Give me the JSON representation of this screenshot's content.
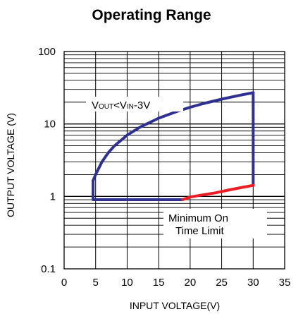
{
  "chart_data": {
    "type": "line",
    "title": "Operating Range",
    "xlabel": "INPUT VOLTAGE(V)",
    "ylabel": "OUTPUT VOLTAGE (V)",
    "xlim": [
      0,
      35
    ],
    "ylim": [
      0.1,
      100
    ],
    "y_scale": "log",
    "grid": true,
    "x_ticks": [
      "0",
      "5",
      "10",
      "15",
      "20",
      "25",
      "30",
      "35"
    ],
    "y_ticks": [
      "0.1",
      "1",
      "10",
      "100"
    ],
    "series": [
      {
        "color": "#2e3192",
        "x": [
          4.6,
          4.6,
          18.8
        ],
        "y": [
          1.65,
          0.9,
          0.9
        ]
      },
      {
        "color": "#2e3192",
        "x": [
          4.6,
          5,
          6,
          7,
          8,
          10,
          12,
          15,
          18,
          20,
          22,
          25,
          28,
          30
        ],
        "y": [
          1.65,
          2.0,
          3.0,
          4.0,
          5.0,
          7.0,
          9.0,
          12.0,
          15.0,
          17.0,
          19.0,
          22.0,
          25.0,
          27.0
        ]
      },
      {
        "color": "#2e3192",
        "x": [
          30,
          30
        ],
        "y": [
          27.0,
          1.42
        ]
      },
      {
        "color": "#ed1c24",
        "x": [
          18.8,
          20,
          22,
          24,
          26,
          28,
          30
        ],
        "y": [
          0.9,
          0.98,
          1.05,
          1.12,
          1.22,
          1.32,
          1.42
        ]
      }
    ],
    "annotations": [
      {
        "text": "VOUT<VIN-3V",
        "parts": [
          [
            "V",
            false
          ],
          [
            "OUT",
            true
          ],
          [
            "<V",
            false
          ],
          [
            "IN",
            true
          ],
          [
            "-3V",
            false
          ]
        ]
      },
      {
        "lines": [
          "Minimum On",
          "Time  Limit"
        ]
      }
    ],
    "colors": {
      "blue": "#2e3192",
      "red": "#ed1c24"
    }
  }
}
